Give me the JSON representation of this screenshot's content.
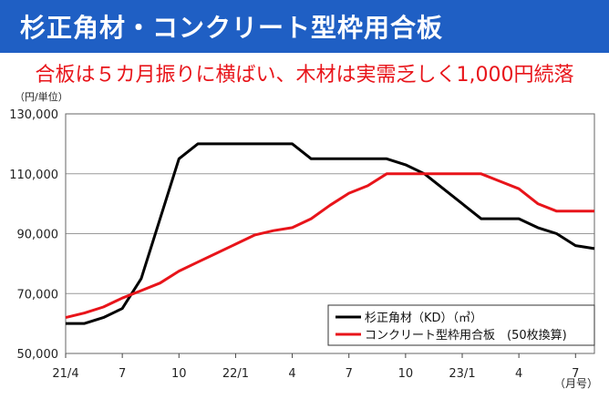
{
  "banner": {
    "title": "杉正角材・コンクリート型枠用合板"
  },
  "headline": "合板は５カ月振りに横ばい、木材は実需乏しく1,000円続落",
  "colors": {
    "banner": "#1f5fc4",
    "headline": "#e8141a",
    "lumber": "#000000",
    "plywood": "#e8141a"
  },
  "chart_data": {
    "type": "line",
    "y_unit_label": "（円/単位）",
    "x_unit_label": "（月号）",
    "ylim": [
      50000,
      130000
    ],
    "y_ticks": [
      "50,000",
      "70,000",
      "90,000",
      "110,000",
      "130,000"
    ],
    "y_tick_values": [
      50000,
      70000,
      90000,
      110000,
      130000
    ],
    "x_tick_labels": [
      "21/4",
      "7",
      "10",
      "22/1",
      "4",
      "7",
      "10",
      "23/1",
      "4",
      "7"
    ],
    "x_tick_index": [
      0,
      3,
      6,
      9,
      12,
      15,
      18,
      21,
      24,
      27
    ],
    "grid": "horizontal",
    "legend_position": "bottom-right",
    "series": [
      {
        "name": "杉正角材（KD）（㎥）",
        "color": "#000000",
        "values": [
          60000,
          60000,
          62000,
          65000,
          75000,
          95000,
          115000,
          120000,
          120000,
          120000,
          120000,
          120000,
          120000,
          115000,
          115000,
          115000,
          115000,
          115000,
          113000,
          110000,
          105000,
          100000,
          95000,
          95000,
          95000,
          92000,
          90000,
          86000,
          85000
        ]
      },
      {
        "name": "コンクリート型枠用合板　(50枚換算)",
        "color": "#e8141a",
        "values": [
          62000,
          63500,
          65500,
          68500,
          71000,
          73500,
          77500,
          80500,
          83500,
          86500,
          89500,
          91000,
          92000,
          95000,
          99500,
          103500,
          106000,
          110000,
          110000,
          110000,
          110000,
          110000,
          110000,
          107500,
          105000,
          100000,
          97500,
          97500,
          97500
        ]
      }
    ]
  }
}
